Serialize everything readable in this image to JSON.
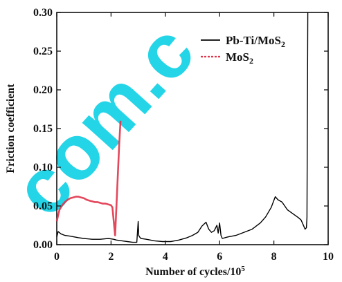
{
  "watermark": "com.c",
  "chart_data": {
    "type": "line",
    "title": "",
    "xlabel": "Number of cycles/10",
    "xlabel_superscript": "5",
    "ylabel": "Friction coefficient",
    "xlim": [
      0,
      10
    ],
    "ylim": [
      0,
      0.3
    ],
    "x_ticks": [
      "0",
      "2",
      "4",
      "6",
      "8",
      "10"
    ],
    "y_ticks": [
      "0.00",
      "0.05",
      "0.10",
      "0.15",
      "0.20",
      "0.25",
      "0.30"
    ],
    "legend_placement": "top-right",
    "grid": false,
    "series": [
      {
        "name": "Pb-Ti/MoS2",
        "legend_main": "Pb-Ti/MoS",
        "legend_sub": "2",
        "color": "#000000",
        "x": [
          0,
          0.05,
          0.15,
          0.3,
          0.5,
          0.8,
          1.0,
          1.3,
          1.6,
          1.9,
          2.1,
          2.2,
          2.4,
          2.6,
          2.8,
          2.95,
          3.0,
          3.02,
          3.05,
          3.1,
          3.3,
          3.6,
          3.9,
          4.2,
          4.5,
          4.8,
          5.0,
          5.2,
          5.35,
          5.5,
          5.6,
          5.7,
          5.8,
          5.9,
          5.95,
          6.0,
          6.05,
          6.1,
          6.3,
          6.6,
          6.9,
          7.2,
          7.5,
          7.7,
          7.9,
          8.05,
          8.15,
          8.3,
          8.5,
          8.7,
          8.9,
          9.0,
          9.05,
          9.15,
          9.2,
          9.22,
          9.25,
          9.25
        ],
        "y": [
          0.01,
          0.017,
          0.014,
          0.012,
          0.011,
          0.009,
          0.008,
          0.007,
          0.007,
          0.008,
          0.007,
          0.006,
          0.005,
          0.004,
          0.003,
          0.003,
          0.03,
          0.012,
          0.01,
          0.008,
          0.007,
          0.005,
          0.004,
          0.004,
          0.006,
          0.009,
          0.012,
          0.016,
          0.024,
          0.029,
          0.02,
          0.016,
          0.018,
          0.025,
          0.015,
          0.028,
          0.012,
          0.008,
          0.01,
          0.012,
          0.016,
          0.02,
          0.028,
          0.036,
          0.048,
          0.062,
          0.058,
          0.055,
          0.045,
          0.04,
          0.035,
          0.032,
          0.028,
          0.02,
          0.022,
          0.035,
          0.3,
          0.3
        ]
      },
      {
        "name": "MoS2",
        "legend_main": "MoS",
        "legend_sub": "2",
        "color": "#e0344a",
        "x": [
          0,
          0.05,
          0.1,
          0.2,
          0.3,
          0.4,
          0.5,
          0.6,
          0.7,
          0.8,
          0.9,
          1.0,
          1.1,
          1.2,
          1.3,
          1.4,
          1.5,
          1.6,
          1.7,
          1.8,
          1.9,
          2.0,
          2.05,
          2.1,
          2.15,
          2.2,
          2.25,
          2.3,
          2.35
        ],
        "y": [
          0.03,
          0.038,
          0.045,
          0.051,
          0.055,
          0.058,
          0.06,
          0.061,
          0.062,
          0.062,
          0.061,
          0.06,
          0.058,
          0.057,
          0.056,
          0.055,
          0.055,
          0.054,
          0.053,
          0.053,
          0.052,
          0.051,
          0.048,
          0.03,
          0.012,
          0.05,
          0.09,
          0.13,
          0.16
        ]
      }
    ]
  }
}
